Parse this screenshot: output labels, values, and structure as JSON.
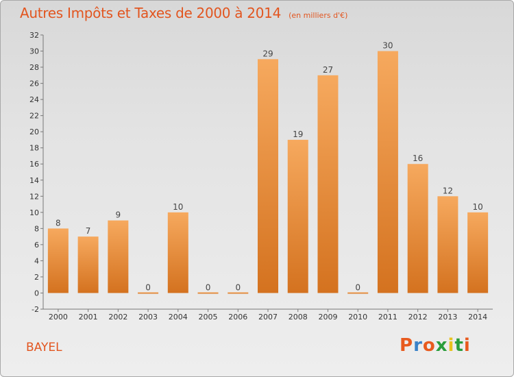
{
  "header": {
    "title": "Autres Impôts et Taxes de 2000 à 2014",
    "subtitle": "(en milliers d'€)"
  },
  "footer": {
    "commune": "BAYEL",
    "logo_text": "Proxiti"
  },
  "colors": {
    "title": "#e2551f",
    "bar_light": "#f6a95e",
    "bar_dark": "#d4721f",
    "logo_letters": [
      "#e85a1e",
      "#3a82c8",
      "#e85a1e",
      "#2a9d3c",
      "#e8c21e",
      "#2a9d3c",
      "#e85a1e"
    ]
  },
  "chart_data": {
    "type": "bar",
    "title": "Autres Impôts et Taxes de 2000 à 2014",
    "subtitle": "(en milliers d'€)",
    "xlabel": "",
    "ylabel": "",
    "categories": [
      "2000",
      "2001",
      "2002",
      "2003",
      "2004",
      "2005",
      "2006",
      "2007",
      "2008",
      "2009",
      "2010",
      "2011",
      "2012",
      "2013",
      "2014"
    ],
    "values": [
      8,
      7,
      9,
      0,
      10,
      0,
      0,
      29,
      19,
      27,
      0,
      30,
      16,
      12,
      10
    ],
    "data_labels": [
      "8",
      "7",
      "9",
      "0",
      "10",
      "0",
      "0",
      "29",
      "19",
      "27",
      "0",
      "30",
      "16",
      "12",
      "10"
    ],
    "ylim": [
      -2,
      32
    ],
    "yticks": [
      -2,
      0,
      2,
      4,
      6,
      8,
      10,
      12,
      14,
      16,
      18,
      20,
      22,
      24,
      26,
      28,
      30,
      32
    ],
    "grid": false,
    "legend": "none"
  }
}
